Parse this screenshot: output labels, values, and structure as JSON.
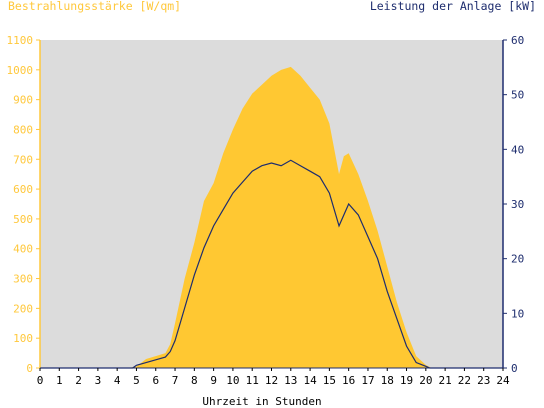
{
  "chart_data": {
    "type": "area",
    "title_left": "Bestrahlungsstärke [W/qm]",
    "title_right": "Leistung der Anlage [kW]",
    "xlabel": "Uhrzeit in Stunden",
    "xlim": [
      0,
      24
    ],
    "x_ticks": [
      "0",
      "1",
      "2",
      "3",
      "4",
      "5",
      "6",
      "7",
      "8",
      "9",
      "10",
      "11",
      "12",
      "13",
      "14",
      "15",
      "16",
      "17",
      "18",
      "19",
      "20",
      "21",
      "22",
      "23",
      "24"
    ],
    "y_left_lim": [
      0,
      1100
    ],
    "y_left_ticks": [
      "0",
      "100",
      "200",
      "300",
      "400",
      "500",
      "600",
      "700",
      "800",
      "900",
      "1000",
      "1100"
    ],
    "y_right_lim": [
      0,
      60
    ],
    "y_right_ticks": [
      "0",
      "10",
      "20",
      "30",
      "40",
      "50",
      "60"
    ],
    "colors": {
      "left_axis": "#ffc83c",
      "right_axis": "#1e2d6e",
      "area_fill": "#ffc832",
      "plot_bg": "#dcdcdc",
      "line": "#1e2d6e"
    },
    "series": [
      {
        "axis": "left",
        "kind": "area",
        "x": [
          0,
          4.5,
          5,
          5.5,
          6,
          6.5,
          6.75,
          7,
          7.5,
          8,
          8.5,
          9,
          9.5,
          10,
          10.5,
          11,
          11.5,
          12,
          12.5,
          13,
          13.5,
          14,
          14.5,
          15,
          15.5,
          15.75,
          16,
          16.5,
          17,
          17.5,
          18,
          18.5,
          19,
          19.5,
          20,
          20.3,
          24
        ],
        "values": [
          0,
          0,
          5,
          30,
          40,
          50,
          80,
          150,
          300,
          420,
          560,
          620,
          720,
          800,
          870,
          920,
          950,
          980,
          1000,
          1010,
          980,
          940,
          900,
          820,
          650,
          710,
          720,
          650,
          560,
          460,
          340,
          220,
          120,
          40,
          10,
          0,
          0
        ]
      },
      {
        "axis": "right",
        "kind": "line",
        "x": [
          0,
          4.8,
          5,
          5.5,
          6,
          6.5,
          6.75,
          7,
          7.5,
          8,
          8.5,
          9,
          9.5,
          10,
          10.5,
          11,
          11.5,
          12,
          12.5,
          13,
          13.5,
          14,
          14.5,
          15,
          15.5,
          16,
          16.5,
          17,
          17.5,
          18,
          18.5,
          19,
          19.5,
          20,
          20.2,
          24
        ],
        "values": [
          0,
          0,
          0.5,
          1,
          1.5,
          2,
          3,
          5,
          11,
          17,
          22,
          26,
          29,
          32,
          34,
          36,
          37,
          37.5,
          37,
          38,
          37,
          36,
          35,
          32,
          26,
          30,
          28,
          24,
          20,
          14,
          9,
          4,
          1,
          0.3,
          0,
          0
        ]
      }
    ]
  }
}
